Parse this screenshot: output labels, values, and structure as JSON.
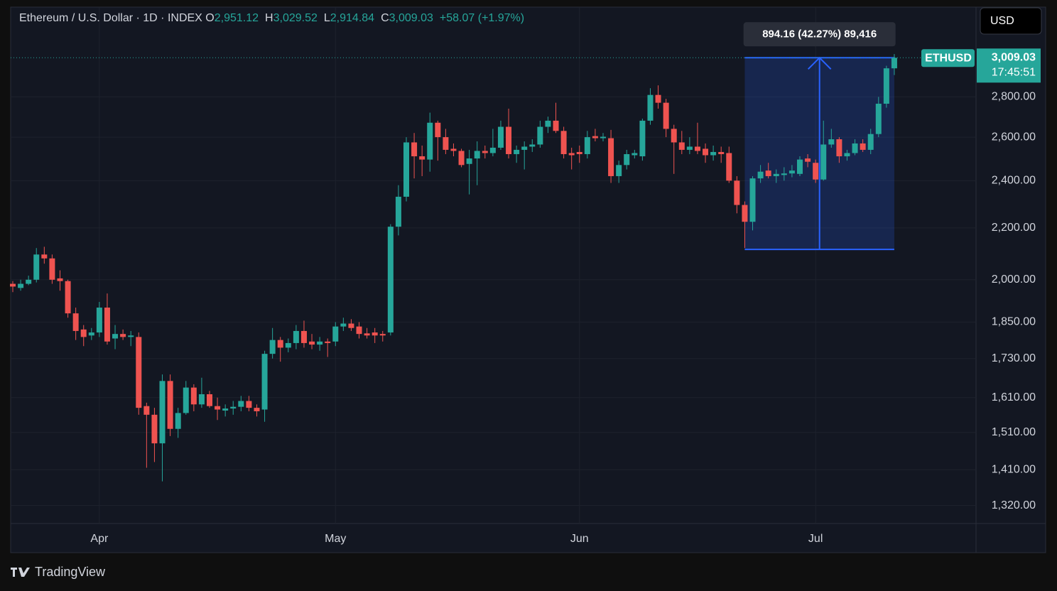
{
  "chart_data": {
    "type": "candlestick",
    "title": "Ethereum / U.S. Dollar · 1D · INDEX",
    "ohlc_header": [
      {
        "key": "O",
        "value": "2,951.12"
      },
      {
        "key": "H",
        "value": "3,029.52"
      },
      {
        "key": "L",
        "value": "2,914.84"
      },
      {
        "key": "C",
        "value": "3,009.03"
      }
    ],
    "change": "+58.07 (+1.97%)",
    "currency": "USD",
    "symbol": "ETHUSD",
    "last_price_label": "3,009.03",
    "countdown": "17:45:51",
    "brand": "TradingView",
    "up_color": "#26a69a",
    "down_color": "#ef5350",
    "log_scale": true,
    "grid": true,
    "ylim": [
      1277,
      3303
    ],
    "yticks": [
      {
        "value": 1320,
        "label": "1,320.00"
      },
      {
        "value": 1410,
        "label": "1,410.00"
      },
      {
        "value": 1510,
        "label": "1,510.00"
      },
      {
        "value": 1610,
        "label": "1,610.00"
      },
      {
        "value": 1730,
        "label": "1,730.00"
      },
      {
        "value": 1850,
        "label": "1,850.00"
      },
      {
        "value": 2000,
        "label": "2,000.00"
      },
      {
        "value": 2200,
        "label": "2,200.00"
      },
      {
        "value": 2400,
        "label": "2,400.00"
      },
      {
        "value": 2600,
        "label": "2,600.00"
      },
      {
        "value": 2800,
        "label": "2,800.00"
      }
    ],
    "measure": {
      "label": "894.16 (42.27%) 89,416",
      "from": 2114.87,
      "to": 3009.03,
      "start": 93,
      "end": 112
    },
    "categories": [
      null,
      null,
      null,
      null,
      null,
      null,
      null,
      null,
      null,
      null,
      null,
      "Apr",
      null,
      null,
      null,
      null,
      null,
      null,
      null,
      null,
      null,
      null,
      null,
      null,
      null,
      null,
      null,
      null,
      null,
      null,
      null,
      null,
      null,
      null,
      null,
      null,
      null,
      null,
      null,
      null,
      null,
      "May",
      null,
      null,
      null,
      null,
      null,
      null,
      null,
      null,
      null,
      null,
      null,
      null,
      null,
      null,
      null,
      null,
      null,
      null,
      null,
      null,
      null,
      null,
      null,
      null,
      null,
      null,
      null,
      null,
      null,
      null,
      "Jun",
      null,
      null,
      null,
      null,
      null,
      null,
      null,
      null,
      null,
      null,
      null,
      null,
      null,
      null,
      null,
      null,
      null,
      null,
      null,
      null,
      null,
      null,
      null,
      null,
      null,
      null,
      null,
      null,
      null,
      "Jul",
      null,
      null,
      null,
      null,
      null,
      null,
      null,
      null,
      null,
      null
    ],
    "open": [
      1985,
      1970,
      1985,
      2000,
      2095,
      2080,
      2005,
      1995,
      1880,
      1825,
      1805,
      1815,
      1900,
      1795,
      1810,
      1800,
      1800,
      1585,
      1560,
      1480,
      1660,
      1520,
      1565,
      1640,
      1590,
      1620,
      1585,
      1572,
      1578,
      1583,
      1600,
      1580,
      1575,
      1745,
      1790,
      1765,
      1780,
      1820,
      1785,
      1775,
      1785,
      1785,
      1835,
      1845,
      1835,
      1812,
      1815,
      1810,
      1815,
      2205,
      2330,
      2575,
      2510,
      2495,
      2670,
      2600,
      2545,
      2535,
      2475,
      2500,
      2535,
      2525,
      2550,
      2650,
      2520,
      2540,
      2555,
      2565,
      2650,
      2680,
      2630,
      2525,
      2530,
      2520,
      2605,
      2595,
      2595,
      2420,
      2470,
      2515,
      2510,
      2680,
      2810,
      2770,
      2640,
      2575,
      2540,
      2555,
      2545,
      2515,
      2530,
      2525,
      2400,
      2295,
      2225,
      2410,
      2445,
      2420,
      2425,
      2432,
      2430,
      2500,
      2480,
      2405,
      2565,
      2590,
      2510,
      2525,
      2570,
      2540,
      2615,
      2765,
      2951.12
    ],
    "high": [
      1995,
      2000,
      2015,
      2120,
      2125,
      2095,
      2035,
      2000,
      1900,
      1840,
      1830,
      1920,
      1950,
      1840,
      1825,
      1820,
      1815,
      1595,
      1580,
      1680,
      1680,
      1580,
      1660,
      1650,
      1670,
      1630,
      1610,
      1590,
      1600,
      1615,
      1615,
      1590,
      1755,
      1830,
      1800,
      1795,
      1840,
      1855,
      1810,
      1800,
      1795,
      1850,
      1865,
      1860,
      1850,
      1830,
      1830,
      1820,
      2215,
      2380,
      2600,
      2620,
      2560,
      2720,
      2680,
      2640,
      2570,
      2545,
      2540,
      2580,
      2560,
      2640,
      2680,
      2740,
      2560,
      2580,
      2590,
      2680,
      2700,
      2770,
      2650,
      2550,
      2560,
      2630,
      2640,
      2620,
      2635,
      2490,
      2540,
      2540,
      2690,
      2845,
      2860,
      2790,
      2660,
      2630,
      2600,
      2670,
      2570,
      2560,
      2555,
      2555,
      2420,
      2310,
      2420,
      2470,
      2480,
      2450,
      2460,
      2470,
      2510,
      2520,
      2495,
      2680,
      2640,
      2600,
      2540,
      2590,
      2590,
      2640,
      2800,
      2965,
      3029.52
    ],
    "low": [
      1955,
      1960,
      1980,
      1990,
      2060,
      1985,
      1960,
      1865,
      1790,
      1770,
      1790,
      1800,
      1775,
      1760,
      1790,
      1770,
      1560,
      1415,
      1430,
      1380,
      1500,
      1495,
      1560,
      1570,
      1580,
      1580,
      1545,
      1555,
      1560,
      1570,
      1570,
      1555,
      1540,
      1730,
      1720,
      1750,
      1760,
      1765,
      1760,
      1755,
      1735,
      1770,
      1820,
      1820,
      1795,
      1795,
      1780,
      1785,
      1805,
      2170,
      2310,
      2410,
      2420,
      2440,
      2490,
      2520,
      2510,
      2460,
      2340,
      2380,
      2500,
      2510,
      2540,
      2500,
      2480,
      2450,
      2530,
      2550,
      2620,
      2620,
      2500,
      2450,
      2480,
      2500,
      2580,
      2580,
      2390,
      2390,
      2450,
      2500,
      2490,
      2660,
      2740,
      2600,
      2430,
      2520,
      2520,
      2520,
      2480,
      2490,
      2480,
      2390,
      2260,
      2120,
      2190,
      2390,
      2410,
      2390,
      2400,
      2415,
      2420,
      2460,
      2390,
      2400,
      2550,
      2480,
      2490,
      2515,
      2530,
      2520,
      2600,
      2745,
      2914.84
    ],
    "close": [
      1975,
      1985,
      2000,
      2095,
      2080,
      2000,
      1995,
      1880,
      1820,
      1800,
      1815,
      1900,
      1785,
      1810,
      1800,
      1805,
      1580,
      1560,
      1480,
      1660,
      1520,
      1565,
      1640,
      1590,
      1620,
      1585,
      1575,
      1578,
      1583,
      1600,
      1580,
      1570,
      1745,
      1790,
      1765,
      1780,
      1820,
      1780,
      1775,
      1785,
      1780,
      1835,
      1845,
      1830,
      1810,
      1805,
      1805,
      1805,
      2205,
      2330,
      2575,
      2510,
      2495,
      2670,
      2600,
      2540,
      2535,
      2470,
      2500,
      2535,
      2525,
      2550,
      2650,
      2520,
      2540,
      2555,
      2565,
      2650,
      2680,
      2630,
      2520,
      2515,
      2520,
      2600,
      2595,
      2602,
      2420,
      2470,
      2520,
      2525,
      2680,
      2810,
      2770,
      2640,
      2575,
      2540,
      2555,
      2535,
      2515,
      2530,
      2520,
      2400,
      2295,
      2225,
      2410,
      2440,
      2420,
      2430,
      2432,
      2445,
      2495,
      2485,
      2405,
      2565,
      2590,
      2510,
      2525,
      2570,
      2540,
      2615,
      2765,
      2951.12,
      3009.03
    ]
  }
}
